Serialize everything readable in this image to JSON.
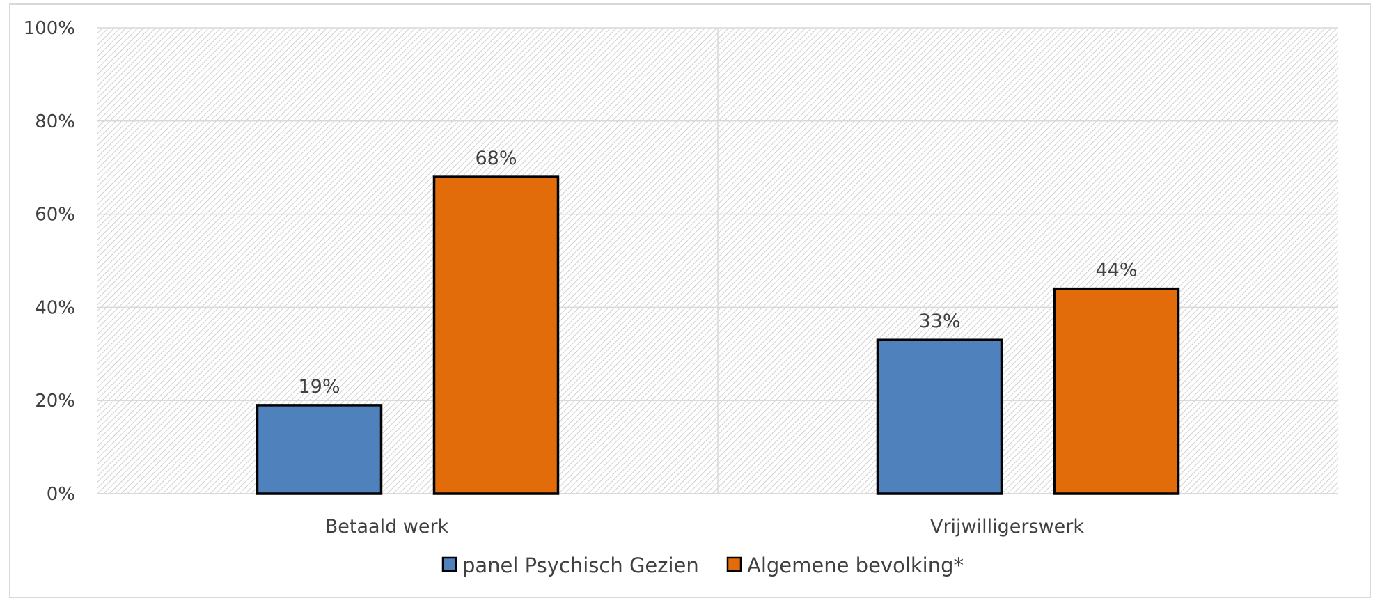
{
  "chart_data": {
    "type": "bar",
    "categories": [
      "Betaald werk",
      "Vrijwilligerswerk"
    ],
    "series": [
      {
        "name": "panel Psychisch Gezien",
        "values": [
          19,
          33
        ],
        "color": "#4F81BD"
      },
      {
        "name": "Algemene bevolking*",
        "values": [
          68,
          44
        ],
        "color": "#E36C0A"
      }
    ],
    "ylim": [
      0,
      100
    ],
    "yticks": [
      "0%",
      "20%",
      "40%",
      "60%",
      "80%",
      "100%"
    ],
    "data_labels": [
      [
        "19%",
        "33%"
      ],
      [
        "68%",
        "44%"
      ]
    ],
    "legend_position": "bottom",
    "grid": true,
    "background_pattern": "diagonal-hatch"
  }
}
